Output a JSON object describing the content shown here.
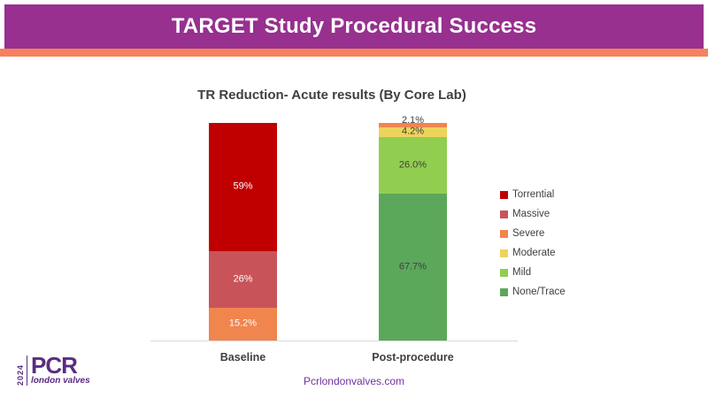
{
  "header": {
    "title": "TARGET Study Procedural Success",
    "banner_color": "#97308F",
    "stripe_color": "#F5825E"
  },
  "chart_data": {
    "type": "bar",
    "stacked": true,
    "title": "TR Reduction- Acute results (By Core Lab)",
    "categories": [
      "Baseline",
      "Post-procedure"
    ],
    "unit": "%",
    "ylim": [
      0,
      100
    ],
    "legend_position": "right",
    "grid": false,
    "series": [
      {
        "name": "Torrential",
        "color": "#C00000",
        "values": [
          59,
          0
        ],
        "labels": [
          "59%",
          ""
        ],
        "label_colors": [
          "#FFFFFF",
          ""
        ]
      },
      {
        "name": "Massive",
        "color": "#C8545A",
        "values": [
          26,
          0
        ],
        "labels": [
          "26%",
          ""
        ],
        "label_colors": [
          "#FFFFFF",
          ""
        ]
      },
      {
        "name": "Severe",
        "color": "#F0854E",
        "values": [
          15.2,
          2.1
        ],
        "labels": [
          "15.2%",
          "2.1%"
        ],
        "label_colors": [
          "#FFFFFF",
          "#3F3F3F"
        ]
      },
      {
        "name": "Moderate",
        "color": "#EDD35C",
        "values": [
          0,
          4.2
        ],
        "labels": [
          "",
          "4.2%"
        ],
        "label_colors": [
          "",
          "#3F3F3F"
        ]
      },
      {
        "name": "Mild",
        "color": "#91CE4F",
        "values": [
          0,
          26.0
        ],
        "labels": [
          "",
          "26.0%"
        ],
        "label_colors": [
          "",
          "#3F3F3F"
        ]
      },
      {
        "name": "None/Trace",
        "color": "#5BA85B",
        "values": [
          0,
          67.7
        ],
        "labels": [
          "",
          "67.7%"
        ],
        "label_colors": [
          "",
          "#3F3F3F"
        ]
      }
    ]
  },
  "footer": {
    "website": "Pcrlondonvalves.com"
  },
  "logo": {
    "year": "2024",
    "brand": "PCR",
    "tagline": "london valves"
  }
}
